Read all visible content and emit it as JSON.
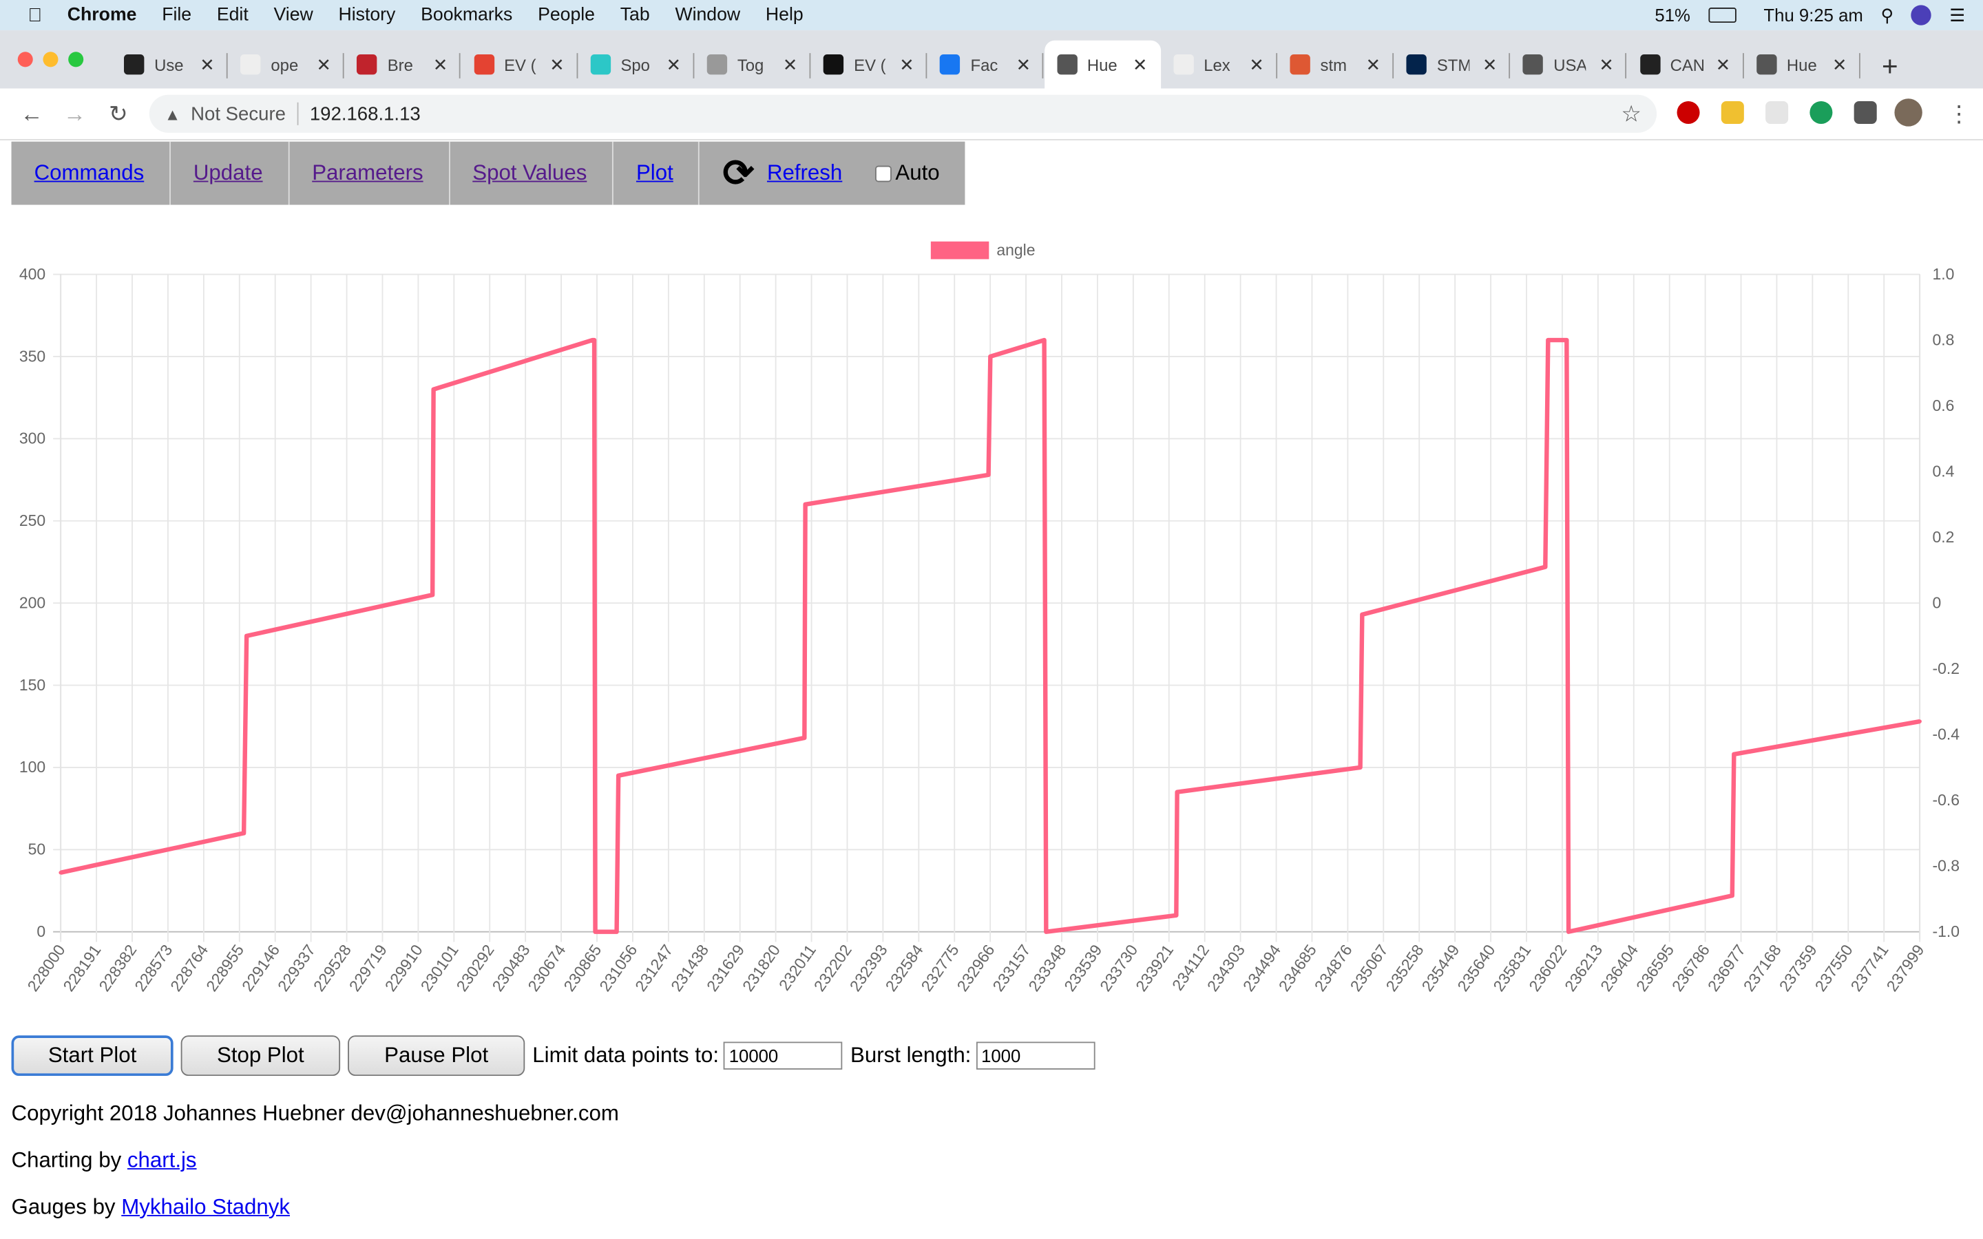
{
  "menubar": {
    "app": "Chrome",
    "items": [
      "File",
      "Edit",
      "View",
      "History",
      "Bookmarks",
      "People",
      "Tab",
      "Window",
      "Help"
    ],
    "battery": "51%",
    "clock": "Thu 9:25 am"
  },
  "tabs": [
    {
      "title": "Use",
      "color": "#222"
    },
    {
      "title": "ope",
      "color": "#eee"
    },
    {
      "title": "Bre",
      "color": "#c0232c"
    },
    {
      "title": "EV (",
      "color": "#e44332"
    },
    {
      "title": "Spo",
      "color": "#2cc7c7"
    },
    {
      "title": "Tog",
      "color": "#999"
    },
    {
      "title": "EV (",
      "color": "#111"
    },
    {
      "title": "Fac",
      "color": "#1877f2"
    },
    {
      "title": "Hue",
      "color": "#555",
      "active": true
    },
    {
      "title": "Lex",
      "color": "#eee"
    },
    {
      "title": "stm",
      "color": "#de5833"
    },
    {
      "title": "STM",
      "color": "#03234b"
    },
    {
      "title": "USA",
      "color": "#555"
    },
    {
      "title": "CAN",
      "color": "#222"
    },
    {
      "title": "Hue",
      "color": "#555"
    }
  ],
  "address": {
    "security": "Not Secure",
    "url": "192.168.1.13"
  },
  "nav": {
    "commands": "Commands",
    "update": "Update",
    "parameters": "Parameters",
    "spot_values": "Spot Values",
    "plot": "Plot",
    "refresh": "Refresh",
    "auto": "Auto"
  },
  "controls": {
    "start": "Start Plot",
    "stop": "Stop Plot",
    "pause": "Pause Plot",
    "limit_label": "Limit data points to:",
    "limit_value": "10000",
    "burst_label": "Burst length:",
    "burst_value": "1000"
  },
  "footer": {
    "copyright": "Copyright 2018 Johannes Huebner dev@johanneshuebner.com",
    "charting_prefix": "Charting by ",
    "charting_link": "chart.js",
    "gauges_prefix": "Gauges by ",
    "gauges_link": "Mykhailo Stadnyk"
  },
  "chart_data": {
    "type": "line",
    "legend_position": "top",
    "grid": true,
    "series": [
      {
        "name": "angle",
        "color": "#ff6384",
        "points": [
          [
            228000,
            36
          ],
          [
            228985,
            60
          ],
          [
            229000,
            180
          ],
          [
            230000,
            205
          ],
          [
            230005,
            330
          ],
          [
            230860,
            360
          ],
          [
            230870,
            360
          ],
          [
            230875,
            0
          ],
          [
            230990,
            0
          ],
          [
            231000,
            95
          ],
          [
            232000,
            118
          ],
          [
            232005,
            260
          ],
          [
            232990,
            278
          ],
          [
            233000,
            350
          ],
          [
            233290,
            360
          ],
          [
            233300,
            0
          ],
          [
            234000,
            10
          ],
          [
            234005,
            85
          ],
          [
            234990,
            100
          ],
          [
            235000,
            193
          ],
          [
            235985,
            222
          ],
          [
            236000,
            360
          ],
          [
            236100,
            360
          ],
          [
            236110,
            0
          ],
          [
            236990,
            22
          ],
          [
            237000,
            108
          ],
          [
            237999,
            128
          ]
        ]
      }
    ],
    "xlim": [
      228000,
      237999
    ],
    "ylim": [
      0,
      400
    ],
    "y_ticks": [
      "0",
      "50",
      "100",
      "150",
      "200",
      "250",
      "300",
      "350",
      "400"
    ],
    "y2lim": [
      -1,
      1
    ],
    "y2_ticks": [
      "-1.0",
      "-0.8",
      "-0.6",
      "-0.4",
      "-0.2",
      "0",
      "0.2",
      "0.4",
      "0.6",
      "0.8",
      "1.0"
    ],
    "x_ticks": [
      "228000",
      "228191",
      "228382",
      "228573",
      "228764",
      "228955",
      "229146",
      "229337",
      "229528",
      "229719",
      "229910",
      "230101",
      "230292",
      "230483",
      "230674",
      "230865",
      "231056",
      "231247",
      "231438",
      "231629",
      "231820",
      "232011",
      "232202",
      "232393",
      "232584",
      "232775",
      "232966",
      "233157",
      "233348",
      "233539",
      "233730",
      "233921",
      "234112",
      "234303",
      "234494",
      "234685",
      "234876",
      "235067",
      "235258",
      "235449",
      "235640",
      "235831",
      "236022",
      "236213",
      "236404",
      "236595",
      "236786",
      "236977",
      "237168",
      "237359",
      "237550",
      "237741",
      "237999"
    ]
  }
}
